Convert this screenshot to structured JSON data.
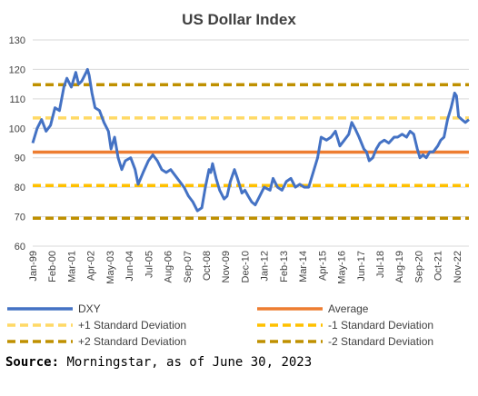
{
  "chart_data": {
    "type": "line",
    "title": "US Dollar Index",
    "xlabel": "",
    "ylabel": "",
    "ylim": [
      60,
      130
    ],
    "yticks": [
      60,
      70,
      80,
      90,
      100,
      110,
      120,
      130
    ],
    "xlim": [
      1999.0,
      2023.5
    ],
    "xticks": [
      {
        "label": "Jan-99",
        "x": 1999.0
      },
      {
        "label": "Feb-00",
        "x": 2000.08
      },
      {
        "label": "Mar-01",
        "x": 2001.17
      },
      {
        "label": "Apr-02",
        "x": 2002.25
      },
      {
        "label": "May-03",
        "x": 2003.33
      },
      {
        "label": "Jun-04",
        "x": 2004.42
      },
      {
        "label": "Jul-05",
        "x": 2005.5
      },
      {
        "label": "Aug-06",
        "x": 2006.58
      },
      {
        "label": "Sep-07",
        "x": 2007.67
      },
      {
        "label": "Oct-08",
        "x": 2008.75
      },
      {
        "label": "Nov-09",
        "x": 2009.83
      },
      {
        "label": "Dec-10",
        "x": 2010.92
      },
      {
        "label": "Jan-12",
        "x": 2012.0
      },
      {
        "label": "Feb-13",
        "x": 2013.08
      },
      {
        "label": "Mar-14",
        "x": 2014.17
      },
      {
        "label": "Apr-15",
        "x": 2015.25
      },
      {
        "label": "May-16",
        "x": 2016.33
      },
      {
        "label": "Jun-17",
        "x": 2017.42
      },
      {
        "label": "Jul-18",
        "x": 2018.5
      },
      {
        "label": "Aug-19",
        "x": 2019.58
      },
      {
        "label": "Sep-20",
        "x": 2020.67
      },
      {
        "label": "Oct-21",
        "x": 2021.75
      },
      {
        "label": "Nov-22",
        "x": 2022.83
      }
    ],
    "grid": true,
    "legend_placement": "bottom",
    "series": [
      {
        "name": "DXY",
        "color": "#4472C4",
        "style": "solid",
        "points": [
          [
            1999.0,
            95
          ],
          [
            1999.25,
            100
          ],
          [
            1999.5,
            103
          ],
          [
            1999.75,
            99
          ],
          [
            2000.0,
            101
          ],
          [
            2000.25,
            107
          ],
          [
            2000.5,
            106
          ],
          [
            2000.75,
            114
          ],
          [
            2000.92,
            117
          ],
          [
            2001.17,
            114
          ],
          [
            2001.42,
            119
          ],
          [
            2001.58,
            115
          ],
          [
            2001.75,
            116
          ],
          [
            2002.0,
            119
          ],
          [
            2002.08,
            120
          ],
          [
            2002.17,
            118
          ],
          [
            2002.33,
            112
          ],
          [
            2002.5,
            107
          ],
          [
            2002.75,
            106
          ],
          [
            2003.0,
            102
          ],
          [
            2003.25,
            99
          ],
          [
            2003.4,
            93
          ],
          [
            2003.6,
            97
          ],
          [
            2003.8,
            90
          ],
          [
            2004.0,
            86
          ],
          [
            2004.2,
            89
          ],
          [
            2004.5,
            90
          ],
          [
            2004.75,
            86
          ],
          [
            2004.92,
            81
          ],
          [
            2005.2,
            85
          ],
          [
            2005.5,
            89
          ],
          [
            2005.75,
            91
          ],
          [
            2006.0,
            89
          ],
          [
            2006.25,
            86
          ],
          [
            2006.5,
            85
          ],
          [
            2006.75,
            86
          ],
          [
            2007.0,
            84
          ],
          [
            2007.25,
            82
          ],
          [
            2007.5,
            80
          ],
          [
            2007.75,
            77
          ],
          [
            2008.0,
            75
          ],
          [
            2008.25,
            72
          ],
          [
            2008.5,
            73
          ],
          [
            2008.7,
            80
          ],
          [
            2008.9,
            86
          ],
          [
            2009.0,
            85
          ],
          [
            2009.1,
            88
          ],
          [
            2009.3,
            83
          ],
          [
            2009.5,
            79
          ],
          [
            2009.75,
            76
          ],
          [
            2009.92,
            77
          ],
          [
            2010.1,
            82
          ],
          [
            2010.33,
            86
          ],
          [
            2010.5,
            83
          ],
          [
            2010.75,
            78
          ],
          [
            2010.92,
            79
          ],
          [
            2011.1,
            77
          ],
          [
            2011.3,
            75
          ],
          [
            2011.5,
            74
          ],
          [
            2011.75,
            77
          ],
          [
            2012.0,
            80
          ],
          [
            2012.33,
            79
          ],
          [
            2012.5,
            83
          ],
          [
            2012.75,
            80
          ],
          [
            2013.0,
            79
          ],
          [
            2013.25,
            82
          ],
          [
            2013.5,
            83
          ],
          [
            2013.75,
            80
          ],
          [
            2014.0,
            81
          ],
          [
            2014.25,
            80
          ],
          [
            2014.5,
            80
          ],
          [
            2014.75,
            85
          ],
          [
            2015.0,
            90
          ],
          [
            2015.2,
            97
          ],
          [
            2015.5,
            96
          ],
          [
            2015.75,
            97
          ],
          [
            2016.0,
            99
          ],
          [
            2016.25,
            94
          ],
          [
            2016.5,
            96
          ],
          [
            2016.75,
            98
          ],
          [
            2016.92,
            102
          ],
          [
            2017.1,
            100
          ],
          [
            2017.33,
            97
          ],
          [
            2017.6,
            93
          ],
          [
            2017.75,
            92
          ],
          [
            2017.9,
            89
          ],
          [
            2018.1,
            90
          ],
          [
            2018.3,
            93
          ],
          [
            2018.5,
            95
          ],
          [
            2018.75,
            96
          ],
          [
            2019.0,
            95
          ],
          [
            2019.3,
            97
          ],
          [
            2019.5,
            97
          ],
          [
            2019.75,
            98
          ],
          [
            2020.0,
            97
          ],
          [
            2020.2,
            99
          ],
          [
            2020.4,
            98
          ],
          [
            2020.6,
            93
          ],
          [
            2020.75,
            90
          ],
          [
            2020.92,
            91
          ],
          [
            2021.1,
            90
          ],
          [
            2021.3,
            92
          ],
          [
            2021.5,
            92
          ],
          [
            2021.75,
            94
          ],
          [
            2021.92,
            96
          ],
          [
            2022.1,
            97
          ],
          [
            2022.3,
            103
          ],
          [
            2022.5,
            107
          ],
          [
            2022.7,
            112
          ],
          [
            2022.8,
            111
          ],
          [
            2022.92,
            104
          ],
          [
            2023.1,
            103
          ],
          [
            2023.3,
            102
          ],
          [
            2023.5,
            103
          ]
        ]
      },
      {
        "name": "Average",
        "color": "#ED7D31",
        "style": "solid",
        "value": 91.9
      },
      {
        "name": "+1 Standard Deviation",
        "color": "#FFD966",
        "style": "dashed",
        "value": 103.5
      },
      {
        "name": "-1 Standard Deviation",
        "color": "#FFC000",
        "style": "dashed",
        "value": 80.6
      },
      {
        "name": "+2 Standard Deviation",
        "color": "#BF9000",
        "style": "dashed",
        "value": 114.8
      },
      {
        "name": "-2 Standard Deviation",
        "color": "#BF9000",
        "style": "dashed",
        "value": 69.5
      }
    ]
  },
  "source": {
    "label": "Source:",
    "text": " Morningstar, as of June 30, 2023"
  }
}
